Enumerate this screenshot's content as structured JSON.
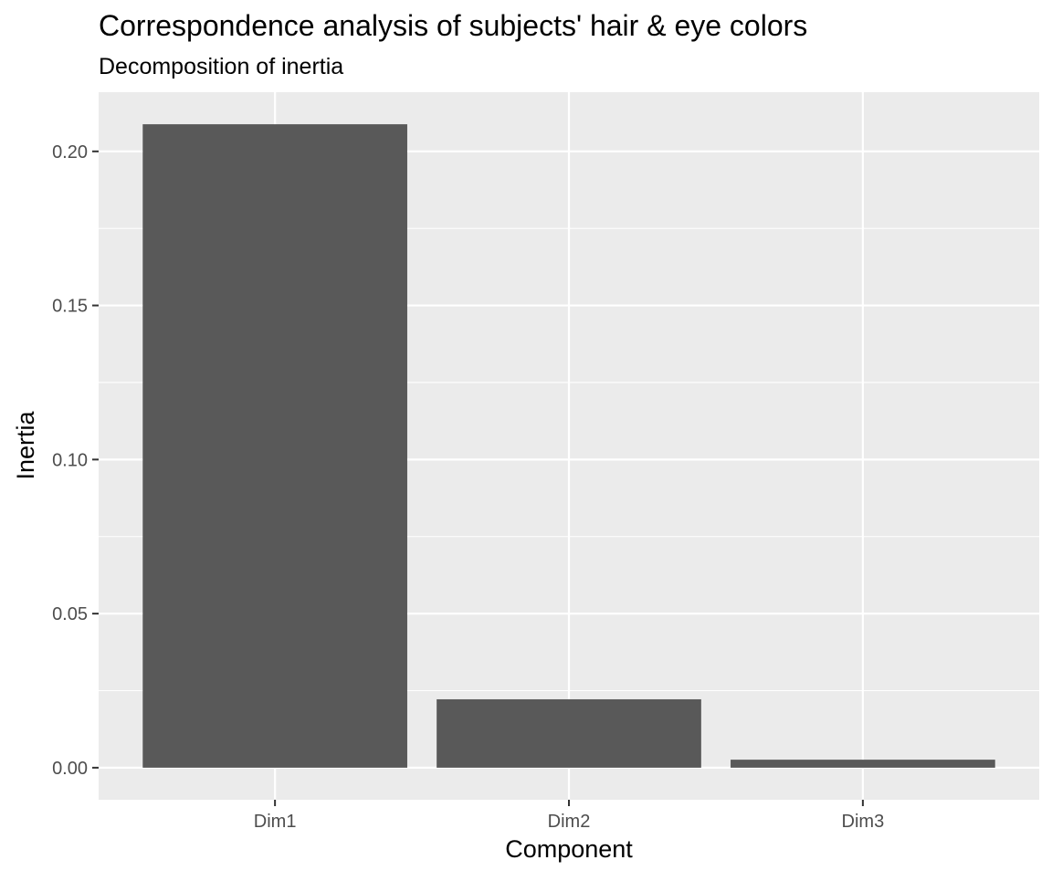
{
  "chart_data": {
    "type": "bar",
    "title": "Correspondence analysis of subjects' hair & eye colors",
    "subtitle": "Decomposition of inertia",
    "xlabel": "Component",
    "ylabel": "Inertia",
    "categories": [
      "Dim1",
      "Dim2",
      "Dim3"
    ],
    "values": [
      0.2088,
      0.0222,
      0.0026
    ],
    "ylim": [
      -0.0104,
      0.2192
    ],
    "yticks": [
      0.0,
      0.05,
      0.1,
      0.15,
      0.2
    ],
    "ytick_labels": [
      "0.00",
      "0.05",
      "0.10",
      "0.15",
      "0.20"
    ],
    "grid": true,
    "legend": "none",
    "colors": {
      "bar": "#595959",
      "panel": "#ebebeb",
      "grid_major": "#ffffff",
      "tick_text": "#4d4d4d",
      "tick_mark": "#333333"
    }
  }
}
